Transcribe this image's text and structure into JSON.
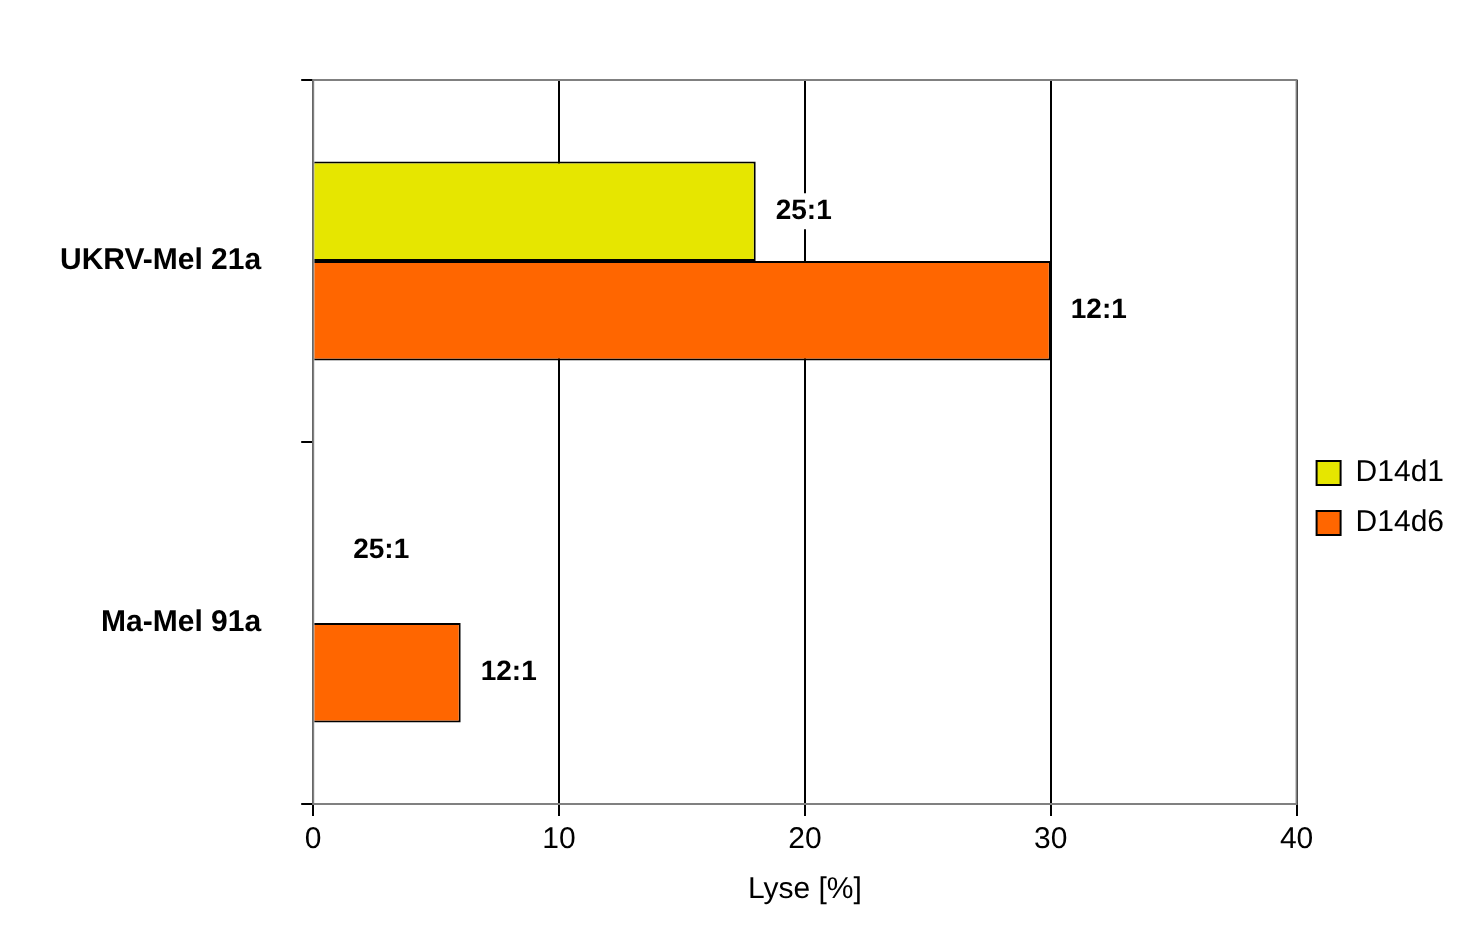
{
  "chart_data": {
    "type": "bar",
    "orientation": "horizontal",
    "categories": [
      "UKRV-Mel 21a",
      "Ma-Mel 91a"
    ],
    "series": [
      {
        "name": "D14d1",
        "color": "#e6e600",
        "values": [
          18,
          null
        ],
        "value_labels": [
          "25:1",
          null
        ]
      },
      {
        "name": "D14d6",
        "color": "#ff6600",
        "values": [
          30,
          6
        ],
        "value_labels": [
          "12:1",
          "12:1"
        ]
      }
    ],
    "annotations": [
      {
        "text": "25:1",
        "x": 0,
        "y": "Ma-Mel 91a"
      }
    ],
    "xlim": [
      0,
      40
    ],
    "xticks": [
      0,
      10,
      20,
      30,
      40
    ],
    "xlabel": "Lyse [%]",
    "grid": "x",
    "legend": "right"
  }
}
